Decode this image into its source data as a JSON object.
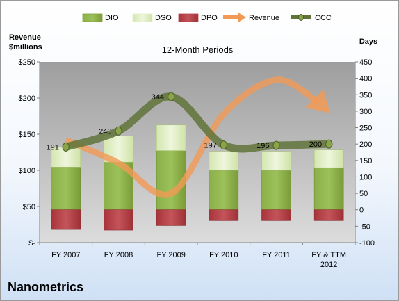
{
  "company": "Nanometrics",
  "chart_data": {
    "type": "bar",
    "title": "12-Month Periods",
    "left_axis_label": [
      "Revenue",
      "$millions"
    ],
    "right_axis_label": "Days",
    "categories": [
      [
        "FY 2007"
      ],
      [
        "FY 2008"
      ],
      [
        "FY 2009"
      ],
      [
        "FY 2010"
      ],
      [
        "FY 2011"
      ],
      [
        "FY & TTM",
        "2012"
      ]
    ],
    "left_ylim": [
      0,
      250
    ],
    "left_ticks": [
      "$-",
      "$50",
      "$100",
      "$150",
      "$200",
      "$250"
    ],
    "right_ylim": [
      -100,
      450
    ],
    "right_ticks": [
      "-100",
      "-50",
      "0",
      "50",
      "100",
      "150",
      "200",
      "250",
      "300",
      "350",
      "400",
      "450"
    ],
    "legend_position": "top",
    "legend": [
      {
        "name": "DIO",
        "kind": "bar",
        "color": "#7fa23c"
      },
      {
        "name": "DSO",
        "kind": "bar",
        "color": "#e3efc8"
      },
      {
        "name": "DPO",
        "kind": "bar",
        "color": "#b8444a"
      },
      {
        "name": "Revenue",
        "kind": "arrow",
        "color": "#f29a55"
      },
      {
        "name": "CCC",
        "kind": "line",
        "color": "#60733a"
      }
    ],
    "series": [
      {
        "name": "DIO",
        "axis": "right",
        "values": [
          130,
          145,
          180,
          120,
          120,
          128
        ]
      },
      {
        "name": "DSO",
        "axis": "right",
        "values": [
          60,
          80,
          78,
          58,
          58,
          54
        ]
      },
      {
        "name": "DPO",
        "axis": "right",
        "values": [
          -60,
          -62,
          -48,
          -33,
          -33,
          -33
        ]
      },
      {
        "name": "Revenue",
        "axis": "left",
        "values": [
          142,
          110,
          68,
          178,
          225,
          181
        ]
      },
      {
        "name": "CCC",
        "axis": "right",
        "values": [
          191,
          240,
          344,
          197,
          196,
          200
        ]
      }
    ],
    "ccc_labels": [
      "191",
      "240",
      "344",
      "197",
      "196",
      "200"
    ],
    "grid": false
  }
}
